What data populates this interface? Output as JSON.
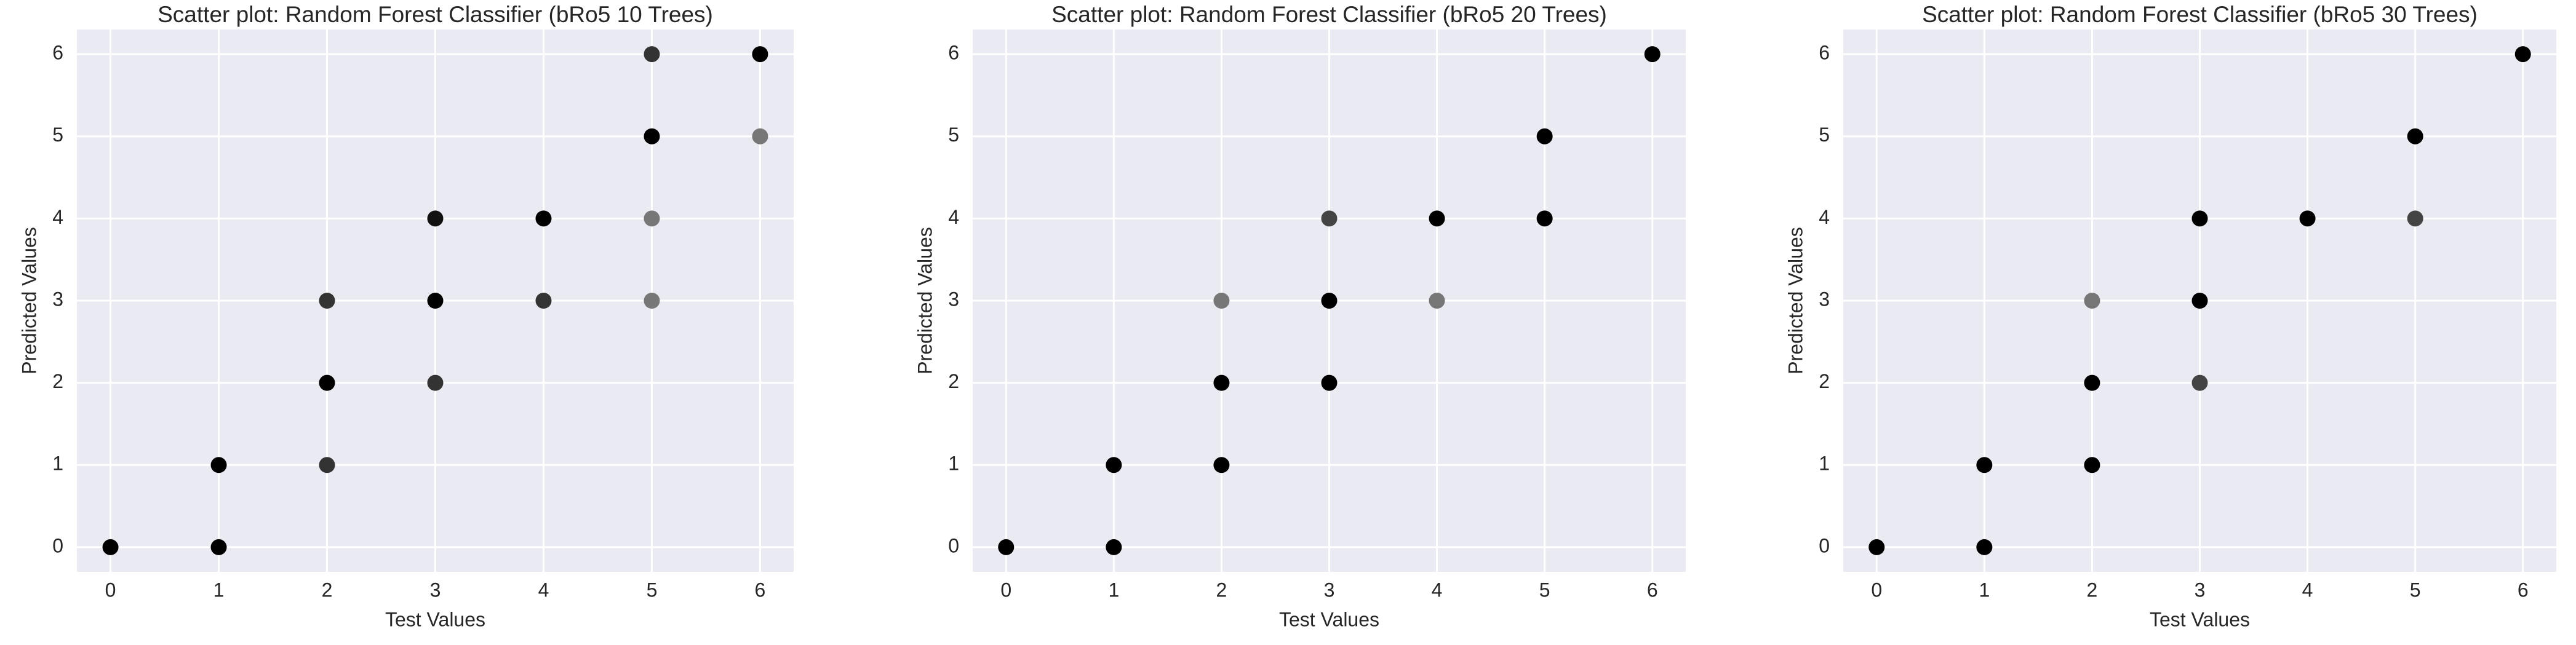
{
  "chart_data": [
    {
      "type": "scatter",
      "title": "Scatter plot: Random Forest Classifier (bRo5 10 Trees)",
      "x_label": "Test Values",
      "y_label": "Predicted Values",
      "xlim": [
        -0.31,
        6.31
      ],
      "ylim": [
        -0.3,
        6.3
      ],
      "xticks": [
        0,
        1,
        2,
        3,
        4,
        5,
        6
      ],
      "yticks": [
        0,
        1,
        2,
        3,
        4,
        5,
        6
      ],
      "grid": true,
      "x": [
        0,
        1,
        1,
        2,
        2,
        2,
        3,
        3,
        3,
        4,
        4,
        5,
        5,
        5,
        5,
        6,
        6
      ],
      "values": [
        0,
        1,
        0,
        1,
        2,
        3,
        2,
        3,
        4,
        3,
        4,
        3,
        4,
        5,
        6,
        5,
        6
      ],
      "colors": [
        "#000000",
        "#000000",
        "#000000",
        "#333333",
        "#000000",
        "#333333",
        "#333333",
        "#000000",
        "#111111",
        "#333333",
        "#000000",
        "#777777",
        "#777777",
        "#000000",
        "#333333",
        "#777777",
        "#000000"
      ]
    },
    {
      "type": "scatter",
      "title": "Scatter plot: Random Forest Classifier (bRo5 20 Trees)",
      "x_label": "Test Values",
      "y_label": "Predicted Values",
      "xlim": [
        -0.31,
        6.31
      ],
      "ylim": [
        -0.3,
        6.3
      ],
      "xticks": [
        0,
        1,
        2,
        3,
        4,
        5,
        6
      ],
      "yticks": [
        0,
        1,
        2,
        3,
        4,
        5,
        6
      ],
      "grid": true,
      "x": [
        0,
        1,
        1,
        2,
        2,
        2,
        3,
        3,
        3,
        4,
        4,
        5,
        5,
        6
      ],
      "values": [
        0,
        0,
        1,
        1,
        2,
        3,
        2,
        3,
        4,
        3,
        4,
        4,
        5,
        6
      ],
      "colors": [
        "#000000",
        "#000000",
        "#000000",
        "#000000",
        "#000000",
        "#777777",
        "#000000",
        "#000000",
        "#444444",
        "#777777",
        "#000000",
        "#000000",
        "#000000",
        "#000000"
      ]
    },
    {
      "type": "scatter",
      "title": "Scatter plot: Random Forest Classifier (bRo5 30 Trees)",
      "x_label": "Test Values",
      "y_label": "Predicted Values",
      "xlim": [
        -0.31,
        6.31
      ],
      "ylim": [
        -0.3,
        6.3
      ],
      "xticks": [
        0,
        1,
        2,
        3,
        4,
        5,
        6
      ],
      "yticks": [
        0,
        1,
        2,
        3,
        4,
        5,
        6
      ],
      "grid": true,
      "x": [
        0,
        1,
        1,
        2,
        2,
        2,
        3,
        3,
        3,
        4,
        5,
        5,
        6
      ],
      "values": [
        0,
        0,
        1,
        1,
        2,
        3,
        2,
        3,
        4,
        4,
        4,
        5,
        6
      ],
      "colors": [
        "#000000",
        "#000000",
        "#000000",
        "#000000",
        "#000000",
        "#777777",
        "#444444",
        "#000000",
        "#000000",
        "#000000",
        "#444444",
        "#000000",
        "#000000"
      ]
    }
  ]
}
